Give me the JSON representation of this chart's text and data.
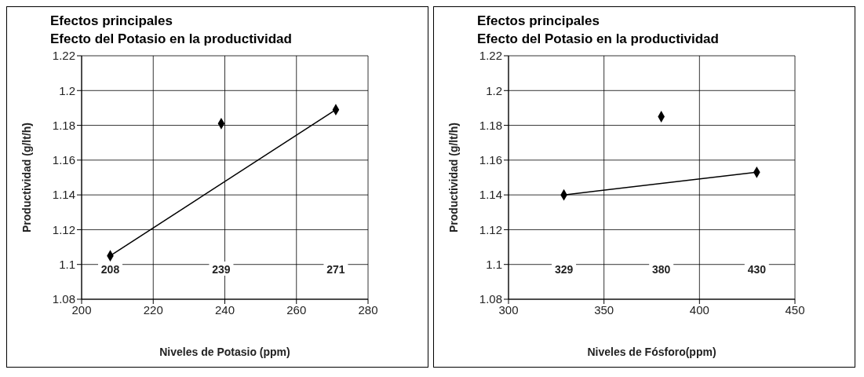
{
  "chart_data": [
    {
      "type": "scatter",
      "title": "Efectos principales",
      "subtitle": "Efecto del Potasio en la productividad",
      "xlabel": "Niveles de Potasio (ppm)",
      "ylabel": "Productividad (g/lt/h)",
      "xlim": [
        200,
        280
      ],
      "xticks": [
        200,
        220,
        240,
        260,
        280
      ],
      "ylim": [
        1.08,
        1.22
      ],
      "yticks": [
        1.08,
        1.1,
        1.12,
        1.14,
        1.16,
        1.18,
        1.2,
        1.22
      ],
      "grid": true,
      "series": [
        {
          "color": "#000000",
          "marker": "diamond",
          "x": [
            208,
            239,
            271
          ],
          "values": [
            1.105,
            1.181,
            1.189
          ]
        },
        {
          "type": "line",
          "color": "#000000",
          "marker": "none",
          "line_style": "solid",
          "x": [
            208,
            271
          ],
          "values": [
            1.105,
            1.189
          ]
        }
      ],
      "annotations": [
        "208",
        "239",
        "271"
      ]
    },
    {
      "type": "scatter",
      "title": "Efectos principales",
      "subtitle": "Efecto del Potasio en la productividad",
      "xlabel": "Niveles de Fósforo(ppm)",
      "ylabel": "Productividad (g/lt/h)",
      "xlim": [
        300,
        450
      ],
      "xticks": [
        300,
        350,
        400,
        450
      ],
      "ylim": [
        1.08,
        1.22
      ],
      "yticks": [
        1.08,
        1.1,
        1.12,
        1.14,
        1.16,
        1.18,
        1.2,
        1.22
      ],
      "grid": true,
      "series": [
        {
          "color": "#000000",
          "marker": "diamond",
          "x": [
            329,
            380,
            430
          ],
          "values": [
            1.14,
            1.185,
            1.153
          ]
        },
        {
          "type": "line",
          "color": "#000000",
          "marker": "none",
          "line_style": "solid",
          "x": [
            329,
            430
          ],
          "values": [
            1.14,
            1.153
          ]
        }
      ],
      "annotations": [
        "329",
        "380",
        "430"
      ]
    }
  ]
}
